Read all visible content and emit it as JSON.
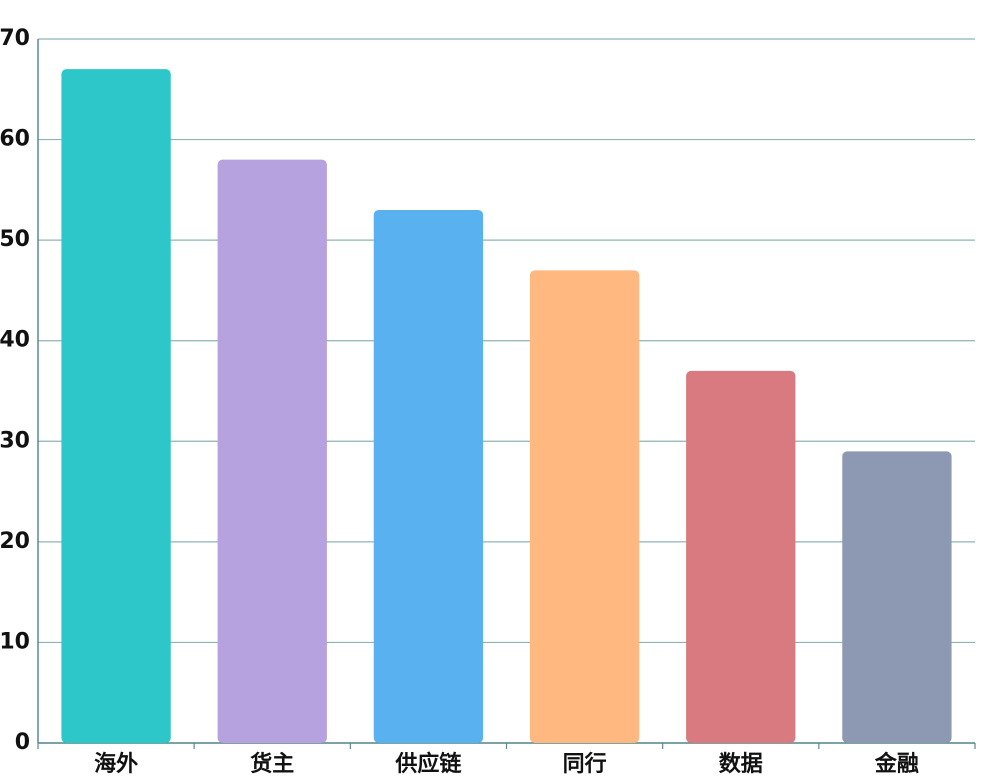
{
  "chart_data": {
    "type": "bar",
    "categories": [
      "海外",
      "货主",
      "供应链",
      "同行",
      "数据",
      "金融"
    ],
    "values": [
      67,
      58,
      53,
      47,
      37,
      29
    ],
    "colors": [
      "#2ec7c9",
      "#b6a2de",
      "#5ab1ef",
      "#ffb980",
      "#d87a80",
      "#8d98b3"
    ],
    "ylim": [
      0,
      70
    ],
    "yticks": [
      0,
      10,
      20,
      30,
      40,
      50,
      60,
      70
    ],
    "grid": true
  }
}
